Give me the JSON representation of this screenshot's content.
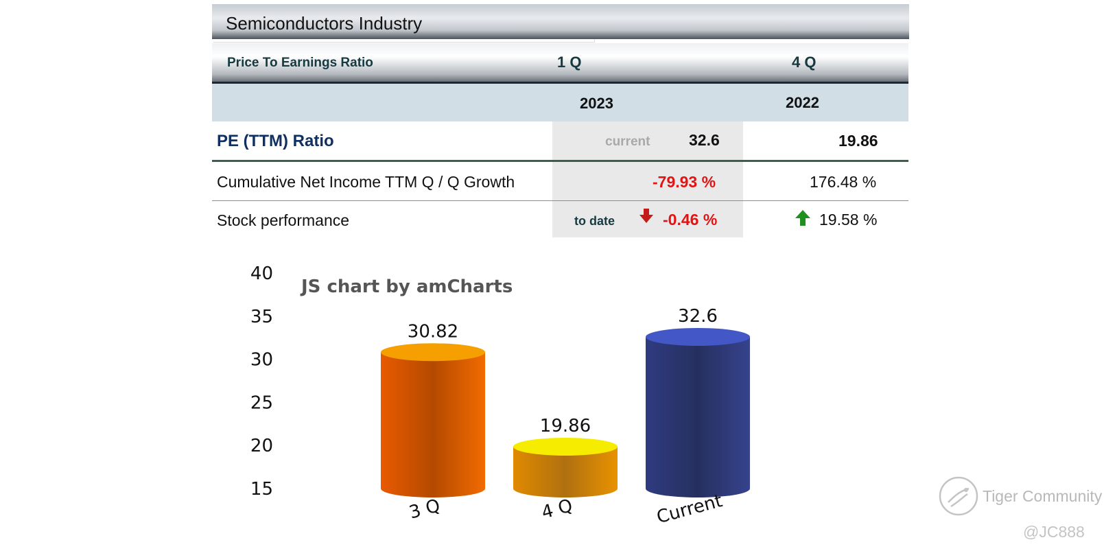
{
  "table": {
    "title": "Semiconductors Industry",
    "header_label": "Price To Earnings Ratio",
    "col1_quarter": "1 Q",
    "col2_quarter": "4 Q",
    "col1_year": "2023",
    "col2_year": "2022",
    "rows": {
      "pe": {
        "label": "PE (TTM) Ratio",
        "current_label": "current",
        "value_1": "32.6",
        "value_2": "19.86"
      },
      "income": {
        "label": "Cumulative Net Income TTM Q / Q Growth",
        "value_1": "-79.93 %",
        "value_2": "176.48 %"
      },
      "stock": {
        "label": "Stock performance",
        "to_date_label": "to date",
        "value_1": "-0.46 %",
        "value_2": "19.58 %"
      }
    },
    "colors": {
      "negative": "#e21313",
      "down_arrow": "#c41a1a",
      "up_arrow": "#1f8f1f"
    }
  },
  "chart_data": {
    "type": "bar",
    "title": "JS chart by amCharts",
    "categories": [
      "3 Q",
      "4 Q",
      "Current"
    ],
    "values": [
      30.82,
      19.86,
      32.6
    ],
    "value_labels": [
      "30.82",
      "19.86",
      "32.6"
    ],
    "ylim": [
      15,
      40
    ],
    "yticks": [
      "40",
      "35",
      "30",
      "25",
      "20",
      "15"
    ],
    "grid": false,
    "style": "3d-cylinder",
    "colors": [
      "#f06a00",
      "#f0a000",
      "#303d82"
    ]
  },
  "watermark": {
    "text": "Tiger Community",
    "user": "@JC888"
  }
}
